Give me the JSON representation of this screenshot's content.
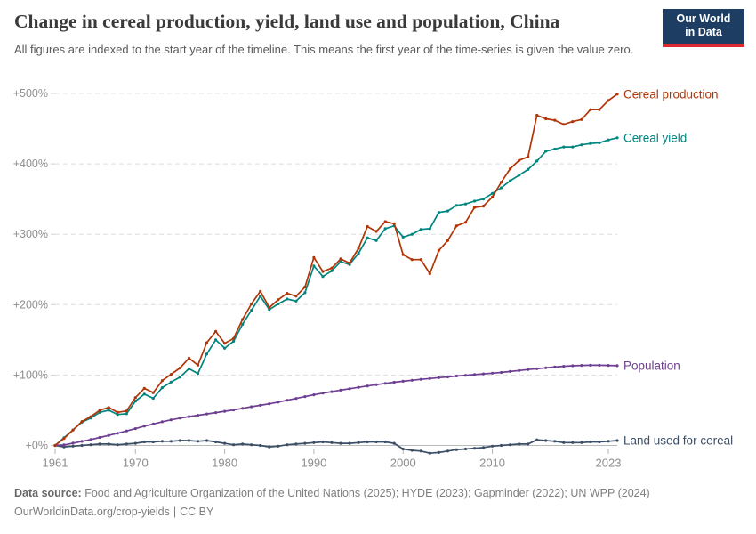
{
  "chart_data": {
    "type": "line",
    "title": "Change in cereal production, yield, land use and population, China",
    "subtitle": "All figures are indexed to the start year of the timeline. This means the first year of the time-series is given the value zero.",
    "years": [
      1961,
      1962,
      1963,
      1964,
      1965,
      1966,
      1967,
      1968,
      1969,
      1970,
      1971,
      1972,
      1973,
      1974,
      1975,
      1976,
      1977,
      1978,
      1979,
      1980,
      1981,
      1982,
      1983,
      1984,
      1985,
      1986,
      1987,
      1988,
      1989,
      1990,
      1991,
      1992,
      1993,
      1994,
      1995,
      1996,
      1997,
      1998,
      1999,
      2000,
      2001,
      2002,
      2003,
      2004,
      2005,
      2006,
      2007,
      2008,
      2009,
      2010,
      2011,
      2012,
      2013,
      2014,
      2015,
      2016,
      2017,
      2018,
      2019,
      2020,
      2021,
      2022,
      2023,
      2024
    ],
    "series": [
      {
        "name": "Cereal production",
        "color": "#B13507",
        "values": [
          0,
          10,
          22,
          34,
          41,
          50,
          54,
          47,
          49,
          68,
          81,
          75,
          92,
          101,
          110,
          124,
          114,
          146,
          162,
          145,
          152,
          179,
          201,
          219,
          196,
          207,
          216,
          212,
          225,
          267,
          247,
          252,
          265,
          259,
          280,
          311,
          304,
          318,
          315,
          271,
          264,
          264,
          244,
          277,
          291,
          312,
          317,
          338,
          340,
          353,
          374,
          393,
          405,
          410,
          469,
          464,
          462,
          456,
          460,
          463,
          477,
          477,
          490,
          499
        ]
      },
      {
        "name": "Cereal yield",
        "color": "#00847E",
        "values": [
          0,
          11,
          22,
          33,
          39,
          47,
          50,
          44,
          45,
          63,
          73,
          67,
          82,
          90,
          97,
          109,
          102,
          130,
          150,
          138,
          148,
          172,
          192,
          212,
          193,
          201,
          208,
          205,
          217,
          255,
          240,
          248,
          261,
          257,
          273,
          295,
          291,
          308,
          312,
          296,
          300,
          307,
          308,
          331,
          333,
          341,
          343,
          347,
          350,
          358,
          366,
          376,
          384,
          392,
          404,
          418,
          421,
          424,
          424,
          427,
          429,
          430,
          434,
          437
        ]
      },
      {
        "name": "Population",
        "color": "#6D3E91",
        "values": [
          0,
          0.8,
          3.3,
          5.8,
          8.3,
          11.4,
          14.3,
          17.3,
          20.6,
          23.9,
          27.4,
          30.5,
          33.6,
          36.4,
          38.8,
          40.9,
          42.9,
          44.8,
          46.7,
          48.6,
          50.5,
          52.7,
          55,
          57,
          59.2,
          61.6,
          64.2,
          66.8,
          69.4,
          71.9,
          74.3,
          76.4,
          78.5,
          80.5,
          82.5,
          84.4,
          86.3,
          88.1,
          89.7,
          91.2,
          92.6,
          93.9,
          95.1,
          96.3,
          97.4,
          98.6,
          99.6,
          100.6,
          101.6,
          102.6,
          103.7,
          105.1,
          106.4,
          107.8,
          109,
          110.2,
          111.4,
          112.4,
          113.2,
          113.7,
          113.9,
          113.9,
          113.6,
          113.3
        ]
      },
      {
        "name": "Land used for cereal",
        "color": "#3C4E66",
        "values": [
          0,
          -2,
          -1,
          0,
          1,
          2,
          2,
          1,
          2,
          3,
          5,
          5,
          6,
          6,
          7,
          7,
          6,
          7,
          5,
          3,
          1,
          2,
          1,
          0,
          -2,
          -1,
          1,
          2,
          3,
          4,
          5,
          4,
          3,
          3,
          4,
          5,
          5,
          5,
          3,
          -5,
          -7,
          -8,
          -11,
          -10,
          -8,
          -6,
          -5,
          -4,
          -3,
          -1,
          0,
          1,
          2,
          2,
          8,
          7,
          6,
          4,
          4,
          4,
          5,
          5,
          6,
          7
        ]
      }
    ],
    "x_ticks": [
      1961,
      1970,
      1980,
      1990,
      2000,
      2010,
      2023
    ],
    "y_ticks": [
      0,
      100,
      200,
      300,
      400,
      500
    ],
    "y_tick_prefix": "+",
    "y_tick_suffix": "%",
    "xlim": [
      1961,
      2024
    ],
    "ylim": [
      0,
      500
    ],
    "grid": "horizontal-dashed",
    "legend_position": "right-of-line-ends"
  },
  "logo": {
    "line1": "Our World",
    "line2": "in Data",
    "bg_color": "#1d3d63",
    "accent_color": "#dc2a33"
  },
  "footer": {
    "source_label": "Data source:",
    "source_text": "Food and Agriculture Organization of the United Nations (2025); HYDE (2023); Gapminder (2022); UN WPP (2024)",
    "link": "OurWorldinData.org/crop-yields",
    "separator": "|",
    "license": "CC BY"
  }
}
